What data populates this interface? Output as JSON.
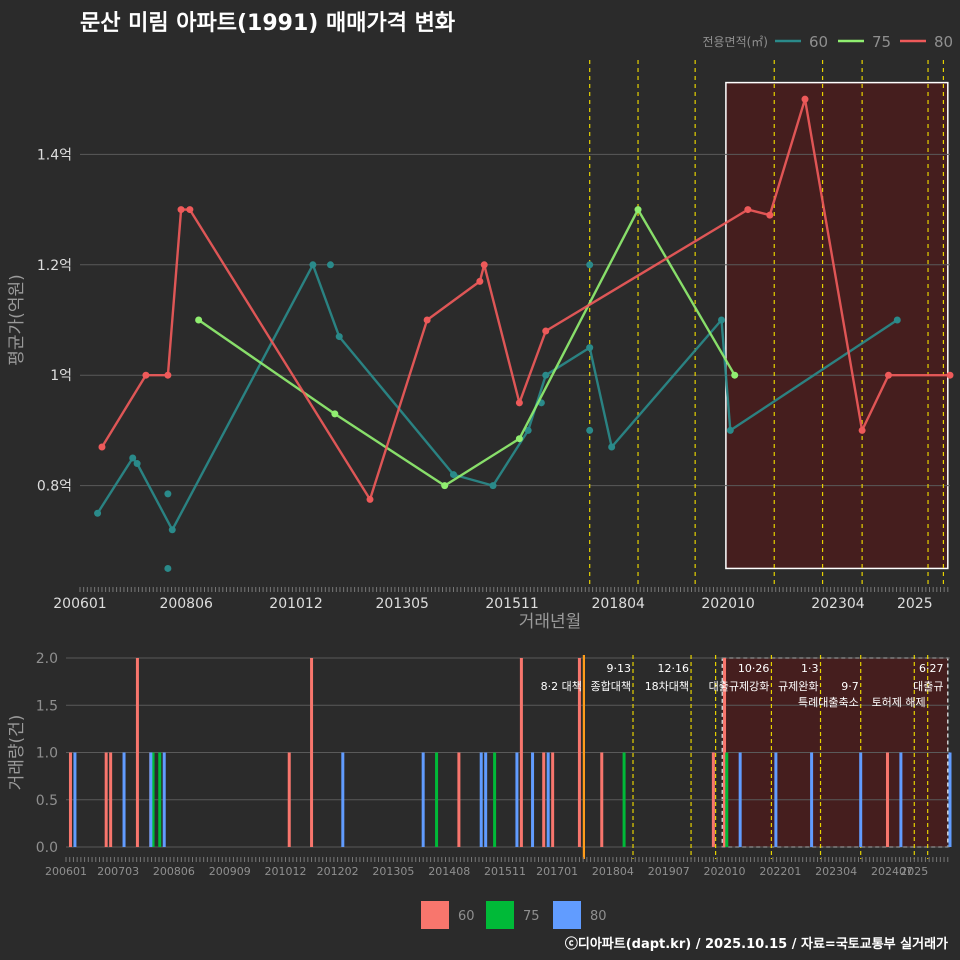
{
  "title": "문산 미림 아파트(1991) 매매가격 변화",
  "footer": "ⓒ디아파트(dapt.kr) / 2025.10.15 / 자료=국토교통부 실거래가",
  "colors": {
    "bg": "#2b2b2b",
    "grid": "#5a5a5a",
    "text": "#dddddd",
    "muted": "#8f8f8f",
    "label": "#9a9a9a",
    "s60": "#2a8a8a",
    "s75": "#90ee70",
    "s80": "#ee5a5a",
    "bar60": "#f8766d",
    "bar75": "#00ba38",
    "bar80": "#619cff",
    "policy": "#e6d200",
    "policyBar": "#ff9c1a",
    "highlight": "#4a1c1c"
  },
  "chart_data": [
    {
      "type": "line",
      "title": "문산 미림 아파트(1991) 매매가격 변화",
      "xlabel": "거래년월",
      "ylabel": "평균가(억원)",
      "legend_title": "전용면적(㎡)",
      "legend_position": "top-right",
      "x_ticks": [
        "200601",
        "200806",
        "201012",
        "201305",
        "201511",
        "201804",
        "202010",
        "202304",
        "2025"
      ],
      "y_ticks": [
        "0.8억",
        "1억",
        "1.2억",
        "1.4억"
      ],
      "y_tick_values": [
        0.8,
        1.0,
        1.2,
        1.4
      ],
      "ylim": [
        0.62,
        1.58
      ],
      "xlim_years": [
        2006.0,
        2025.8
      ],
      "highlight_range_years": [
        2020.7,
        2025.75
      ],
      "highlight_y": [
        0.65,
        1.53
      ],
      "policy_lines_years": [
        2017.6,
        2018.7,
        2020.0,
        2021.8,
        2022.9,
        2023.8,
        2025.3,
        2025.65
      ],
      "series": [
        {
          "name": "60",
          "points": [
            [
              2006.4,
              0.75
            ],
            [
              2007.2,
              0.85
            ],
            [
              2007.3,
              0.84
            ],
            [
              2008.1,
              0.72
            ],
            [
              2011.3,
              1.2
            ],
            [
              2011.9,
              1.07
            ],
            [
              2014.5,
              0.82
            ],
            [
              2015.4,
              0.8
            ],
            [
              2016.2,
              0.9
            ],
            [
              2016.6,
              1.0
            ],
            [
              2017.6,
              1.05
            ],
            [
              2018.1,
              0.87
            ],
            [
              2020.6,
              1.1
            ],
            [
              2020.8,
              0.9
            ],
            [
              2024.6,
              1.1
            ]
          ],
          "dots_extra": [
            [
              2008.0,
              0.785
            ],
            [
              2008.0,
              0.65
            ],
            [
              2011.7,
              1.2
            ],
            [
              2016.5,
              0.95
            ],
            [
              2017.6,
              0.9
            ],
            [
              2017.6,
              1.2
            ]
          ]
        },
        {
          "name": "75",
          "points": [
            [
              2008.7,
              1.1
            ],
            [
              2011.8,
              0.93
            ],
            [
              2014.3,
              0.8
            ],
            [
              2016.0,
              0.885
            ],
            [
              2018.7,
              1.3
            ],
            [
              2020.9,
              1.0
            ]
          ],
          "dots_extra": []
        },
        {
          "name": "80",
          "points": [
            [
              2006.5,
              0.87
            ],
            [
              2007.5,
              1.0
            ],
            [
              2008.0,
              1.0
            ],
            [
              2008.3,
              1.3
            ],
            [
              2008.5,
              1.3
            ],
            [
              2012.6,
              0.775
            ],
            [
              2013.9,
              1.1
            ],
            [
              2015.1,
              1.17
            ],
            [
              2015.2,
              1.2
            ],
            [
              2016.0,
              0.95
            ],
            [
              2016.6,
              1.08
            ],
            [
              2021.2,
              1.3
            ],
            [
              2021.7,
              1.29
            ],
            [
              2022.5,
              1.5
            ],
            [
              2023.8,
              0.9
            ],
            [
              2024.4,
              1.0
            ],
            [
              2025.8,
              1.0
            ]
          ],
          "dots_extra": []
        }
      ]
    },
    {
      "type": "bar",
      "ylabel": "거래량(건)",
      "y_ticks": [
        "0.0",
        "0.5",
        "1.0",
        "1.5",
        "2.0"
      ],
      "y_tick_values": [
        0,
        0.5,
        1.0,
        1.5,
        2.0
      ],
      "ylim": [
        0,
        2.0
      ],
      "x_ticks": [
        "200601",
        "200703",
        "200806",
        "200909",
        "201012",
        "201202",
        "201305",
        "201408",
        "201511",
        "201701",
        "201804",
        "201907",
        "202010",
        "202201",
        "202304",
        "202407",
        "2025"
      ],
      "legend_position": "bottom",
      "policy_lines_years": [
        2017.6,
        2018.7,
        2020.0,
        2020.55,
        2021.8,
        2022.9,
        2023.8,
        2025.0,
        2025.3
      ],
      "policy_labels": [
        {
          "year": 2017.6,
          "line1": "",
          "line2": "8·2 대책",
          "anchor": "end"
        },
        {
          "year": 2018.7,
          "line1": "9·13",
          "line2": "종합대책",
          "anchor": "end"
        },
        {
          "year": 2020.0,
          "line1": "12·16",
          "line2": "18차대책",
          "anchor": "end"
        },
        {
          "year": 2021.8,
          "line1": "10·26",
          "line2": "대출규제강화",
          "anchor": "end"
        },
        {
          "year": 2022.9,
          "line1": "1·3",
          "line2": "규제완화",
          "anchor": "end"
        },
        {
          "year": 2023.8,
          "line1": "",
          "line2": "9·7",
          "anchor": "end"
        },
        {
          "year": 2023.8,
          "line1": "",
          "line2": "특례대출축소",
          "anchor": "end",
          "row": 3
        },
        {
          "year": 2025.3,
          "line1": "",
          "line2": "토허제 해제",
          "anchor": "end",
          "row": 3
        },
        {
          "year": 2025.7,
          "line1": "6·27",
          "line2": "대출규",
          "anchor": "end"
        }
      ],
      "highlight_range_years": [
        2020.7,
        2025.75
      ],
      "series": [
        {
          "name": "60",
          "bars": [
            [
              2006.1,
              1
            ],
            [
              2006.9,
              1
            ],
            [
              2007.0,
              1
            ],
            [
              2007.6,
              2
            ],
            [
              2007.9,
              1
            ],
            [
              2011.0,
              1
            ],
            [
              2011.5,
              2
            ],
            [
              2014.8,
              1
            ],
            [
              2016.7,
              1
            ],
            [
              2016.2,
              2
            ],
            [
              2016.9,
              1
            ],
            [
              2017.5,
              2
            ],
            [
              2018.0,
              1
            ],
            [
              2020.5,
              1
            ],
            [
              2020.75,
              2
            ],
            [
              2024.4,
              1
            ]
          ]
        },
        {
          "name": "75",
          "bars": [
            [
              2007.95,
              1
            ],
            [
              2008.1,
              1
            ],
            [
              2014.3,
              1
            ],
            [
              2015.6,
              1
            ],
            [
              2018.5,
              1
            ],
            [
              2020.8,
              1
            ]
          ]
        },
        {
          "name": "80",
          "bars": [
            [
              2006.2,
              1
            ],
            [
              2007.3,
              1
            ],
            [
              2007.9,
              1
            ],
            [
              2008.2,
              1
            ],
            [
              2012.2,
              1
            ],
            [
              2014.0,
              1
            ],
            [
              2015.3,
              1
            ],
            [
              2015.4,
              1
            ],
            [
              2016.1,
              1
            ],
            [
              2016.45,
              1
            ],
            [
              2016.8,
              1
            ],
            [
              2021.1,
              1
            ],
            [
              2021.9,
              1
            ],
            [
              2022.7,
              1
            ],
            [
              2023.8,
              1
            ],
            [
              2024.7,
              1
            ],
            [
              2025.8,
              1
            ]
          ]
        }
      ]
    }
  ]
}
